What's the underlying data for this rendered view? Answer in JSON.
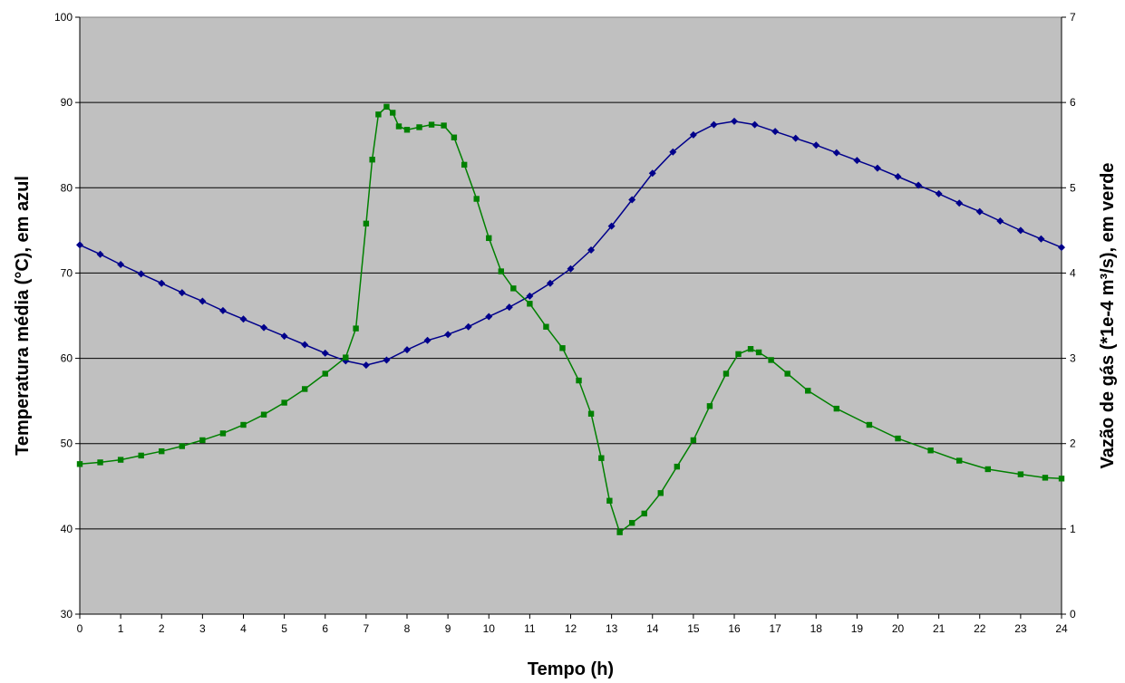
{
  "chart_data": {
    "type": "line",
    "title": "",
    "xlabel": "Tempo (h)",
    "ylabel": "Temperatura média (°C), em azul",
    "y2label": "Vazão de gás (*1e-4 m³/s), em verde",
    "xlim": [
      0,
      24
    ],
    "ylim": [
      30,
      100
    ],
    "y2lim": [
      0,
      7
    ],
    "x_ticks": [
      "0",
      "1",
      "2",
      "3",
      "4",
      "5",
      "6",
      "7",
      "8",
      "9",
      "10",
      "11",
      "12",
      "13",
      "14",
      "15",
      "16",
      "17",
      "18",
      "19",
      "20",
      "21",
      "22",
      "23",
      "24"
    ],
    "y_ticks": [
      "30",
      "40",
      "50",
      "60",
      "70",
      "80",
      "90",
      "100"
    ],
    "y2_ticks": [
      "0",
      "1",
      "2",
      "3",
      "4",
      "5",
      "6",
      "7"
    ],
    "grid": true,
    "plot_background": "#c0c0c0",
    "series": [
      {
        "name": "",
        "axis": "left",
        "color": "#00008b",
        "marker": "diamond",
        "x": [
          0,
          0.5,
          1,
          1.5,
          2,
          2.5,
          3,
          3.5,
          4,
          4.5,
          5,
          5.5,
          6,
          6.5,
          7,
          7.5,
          8,
          8.5,
          9,
          9.5,
          10,
          10.5,
          11,
          11.5,
          12,
          12.5,
          13,
          13.5,
          14,
          14.5,
          15,
          15.5,
          16,
          16.5,
          17,
          17.5,
          18,
          18.5,
          19,
          19.5,
          20,
          20.5,
          21,
          21.5,
          22,
          22.5,
          23,
          23.5,
          24
        ],
        "y": [
          73.3,
          72.2,
          71.0,
          69.9,
          68.8,
          67.7,
          66.7,
          65.6,
          64.6,
          63.6,
          62.6,
          61.6,
          60.6,
          59.7,
          59.2,
          59.8,
          61.0,
          62.1,
          62.8,
          63.7,
          64.9,
          66.0,
          67.3,
          68.8,
          70.5,
          72.7,
          75.5,
          78.6,
          81.7,
          84.2,
          86.2,
          87.4,
          87.8,
          87.4,
          86.6,
          85.8,
          85.0,
          84.1,
          83.2,
          82.3,
          81.3,
          80.3,
          79.3,
          78.2,
          77.2,
          76.1,
          75.0,
          74.0,
          73.0
        ]
      },
      {
        "name": "",
        "axis": "right",
        "color": "#008000",
        "marker": "square",
        "x": [
          0,
          0.5,
          1,
          1.5,
          2,
          2.5,
          3,
          3.5,
          4,
          4.5,
          5,
          5.5,
          6,
          6.5,
          6.75,
          7,
          7.15,
          7.3,
          7.5,
          7.65,
          7.8,
          8,
          8.3,
          8.6,
          8.9,
          9.15,
          9.4,
          9.7,
          10,
          10.3,
          10.6,
          11,
          11.4,
          11.8,
          12.2,
          12.5,
          12.75,
          12.95,
          13.2,
          13.5,
          13.8,
          14.2,
          14.6,
          15,
          15.4,
          15.8,
          16.1,
          16.4,
          16.6,
          16.9,
          17.3,
          17.8,
          18.5,
          19.3,
          20,
          20.8,
          21.5,
          22.2,
          23,
          23.6,
          24
        ],
        "y": [
          1.76,
          1.78,
          1.81,
          1.86,
          1.91,
          1.97,
          2.04,
          2.12,
          2.22,
          2.34,
          2.48,
          2.64,
          2.82,
          3.01,
          3.35,
          4.58,
          5.33,
          5.86,
          5.95,
          5.88,
          5.72,
          5.68,
          5.71,
          5.74,
          5.73,
          5.59,
          5.27,
          4.87,
          4.41,
          4.02,
          3.82,
          3.64,
          3.37,
          3.12,
          2.74,
          2.35,
          1.83,
          1.33,
          0.96,
          1.07,
          1.18,
          1.42,
          1.73,
          2.04,
          2.44,
          2.82,
          3.05,
          3.11,
          3.07,
          2.98,
          2.82,
          2.62,
          2.41,
          2.22,
          2.06,
          1.92,
          1.8,
          1.7,
          1.64,
          1.6,
          1.59
        ]
      }
    ]
  }
}
